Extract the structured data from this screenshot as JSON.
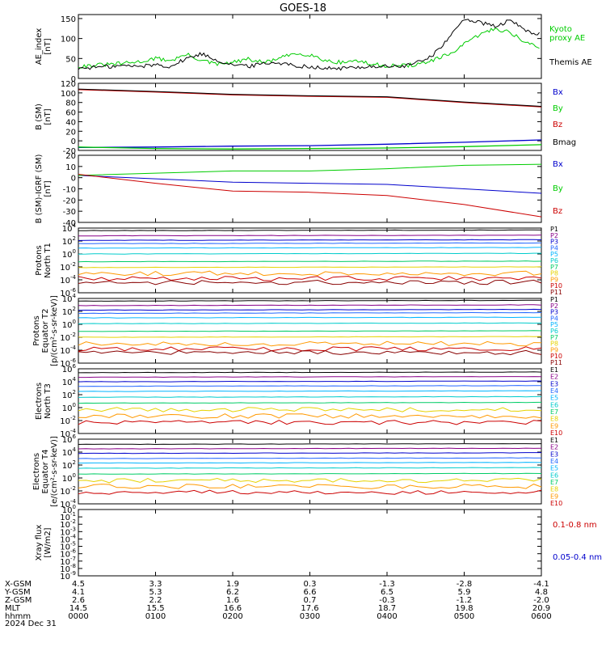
{
  "title": "GOES-18",
  "colors": {
    "black": "#000000",
    "green": "#00cc00",
    "blue": "#0000cc",
    "red": "#cc0000",
    "darkred": "#990000",
    "bright_green": "#00dd00",
    "proton_channels": [
      "#000000",
      "#880088",
      "#0000cc",
      "#2266ff",
      "#00b4ff",
      "#00cccc",
      "#00cc66",
      "#e6d200",
      "#ff9900",
      "#cc0000",
      "#880000"
    ],
    "electron_channels": [
      "#000000",
      "#880088",
      "#0000cc",
      "#2266ff",
      "#00b4ff",
      "#00cccc",
      "#00cc66",
      "#e6d200",
      "#ff9900",
      "#cc0000"
    ]
  },
  "panels": {
    "ae": {
      "ylabel": [
        "AE_index",
        "[nT]"
      ],
      "ticks": [
        "0",
        "50",
        "100",
        "150"
      ],
      "legend": [
        {
          "text": "Kyoto",
          "color": "#00cc00"
        },
        {
          "text": "proxy AE",
          "color": "#00cc00"
        },
        {
          "text": "Themis AE",
          "color": "#000000"
        }
      ]
    },
    "bsm": {
      "ylabel": [
        "B (SM)",
        "[nT]"
      ],
      "ticks": [
        "-20",
        "0",
        "20",
        "40",
        "60",
        "80",
        "100",
        "120"
      ],
      "legend": [
        {
          "text": "Bx",
          "color": "#0000cc"
        },
        {
          "text": "By",
          "color": "#00cc00"
        },
        {
          "text": "Bz",
          "color": "#cc0000"
        },
        {
          "text": "Bmag",
          "color": "#000000"
        }
      ]
    },
    "bigrf": {
      "ylabel": [
        "B (SM)-IGRF (SM)",
        "[nT]"
      ],
      "ticks": [
        "-40",
        "-30",
        "-20",
        "-10",
        "0",
        "10",
        "20"
      ],
      "legend": [
        {
          "text": "Bx",
          "color": "#0000cc"
        },
        {
          "text": "By",
          "color": "#00cc00"
        },
        {
          "text": "Bz",
          "color": "#cc0000"
        }
      ]
    },
    "p1": {
      "ylabel": [
        "Protons",
        "North T1"
      ],
      "ticks": [
        {
          "base": "10",
          "exp": "-6"
        },
        {
          "base": "10",
          "exp": "-4"
        },
        {
          "base": "10",
          "exp": "-2"
        },
        {
          "base": "10",
          "exp": "0"
        },
        {
          "base": "10",
          "exp": "2"
        },
        {
          "base": "10",
          "exp": "4"
        }
      ],
      "channels": [
        "P1",
        "P2",
        "P3",
        "P4",
        "P5",
        "P6",
        "P7",
        "P8",
        "P9",
        "P10",
        "P11"
      ]
    },
    "p2": {
      "ylabel": [
        "Protons",
        "Equator T2",
        "[p/(cm²-s-sr-keV)]"
      ],
      "ticks": [
        {
          "base": "10",
          "exp": "-6"
        },
        {
          "base": "10",
          "exp": "-4"
        },
        {
          "base": "10",
          "exp": "-2"
        },
        {
          "base": "10",
          "exp": "0"
        },
        {
          "base": "10",
          "exp": "2"
        },
        {
          "base": "10",
          "exp": "4"
        }
      ],
      "channels": [
        "P1",
        "P2",
        "P3",
        "P4",
        "P5",
        "P6",
        "P7",
        "P8",
        "P9",
        "P10",
        "P11"
      ]
    },
    "e1": {
      "ylabel": [
        "Electrons",
        "North T3"
      ],
      "ticks": [
        {
          "base": "10",
          "exp": "-4"
        },
        {
          "base": "10",
          "exp": "-2"
        },
        {
          "base": "10",
          "exp": "0"
        },
        {
          "base": "10",
          "exp": "2"
        },
        {
          "base": "10",
          "exp": "4"
        },
        {
          "base": "10",
          "exp": "6"
        }
      ],
      "channels": [
        "E1",
        "E2",
        "E3",
        "E4",
        "E5",
        "E6",
        "E7",
        "E8",
        "E9",
        "E10"
      ]
    },
    "e2": {
      "ylabel": [
        "Electrons",
        "Equator T4",
        "[e/(cm²-s-sr-keV)]"
      ],
      "ticks": [
        {
          "base": "10",
          "exp": "-4"
        },
        {
          "base": "10",
          "exp": "-2"
        },
        {
          "base": "10",
          "exp": "0"
        },
        {
          "base": "10",
          "exp": "2"
        },
        {
          "base": "10",
          "exp": "4"
        },
        {
          "base": "10",
          "exp": "6"
        }
      ],
      "channels": [
        "E1",
        "E2",
        "E3",
        "E4",
        "E5",
        "E6",
        "E7",
        "E8",
        "E9",
        "E10"
      ]
    },
    "xray": {
      "ylabel": [
        "Xray flux",
        "[W/m2]"
      ],
      "ticks": [
        {
          "base": "10",
          "exp": "-9"
        },
        {
          "base": "10",
          "exp": "-8"
        },
        {
          "base": "10",
          "exp": "-7"
        },
        {
          "base": "10",
          "exp": "-6"
        },
        {
          "base": "10",
          "exp": "-5"
        },
        {
          "base": "10",
          "exp": "-4"
        },
        {
          "base": "10",
          "exp": "-3"
        },
        {
          "base": "10",
          "exp": "-2"
        },
        {
          "base": "10",
          "exp": "-1"
        },
        {
          "base": "10",
          "exp": "0"
        }
      ],
      "legend": [
        {
          "text": "0.1-0.8 nm",
          "color": "#cc0000"
        },
        {
          "text": "0.05-0.4 nm",
          "color": "#0000cc"
        }
      ]
    }
  },
  "footer": {
    "row_labels": [
      "X-GSM",
      "Y-GSM",
      "Z-GSM",
      "MLT",
      "hhmm",
      "2024 Dec 31"
    ],
    "columns": [
      [
        "4.5",
        "4.1",
        "2.6",
        "14.5",
        "0000"
      ],
      [
        "3.3",
        "5.3",
        "2.2",
        "15.5",
        "0100"
      ],
      [
        "1.9",
        "6.2",
        "1.6",
        "16.6",
        "0200"
      ],
      [
        "0.3",
        "6.6",
        "0.7",
        "17.6",
        "0300"
      ],
      [
        "-1.3",
        "6.5",
        "-0.3",
        "18.7",
        "0400"
      ],
      [
        "-2.8",
        "5.9",
        "-1.2",
        "19.8",
        "0500"
      ],
      [
        "-4.1",
        "4.8",
        "-2.0",
        "20.9",
        "0600"
      ]
    ]
  },
  "chart_data": [
    {
      "type": "line",
      "name": "AE index",
      "ylim": [
        0,
        160
      ],
      "x_hours": [
        0,
        0.2,
        0.4,
        0.6,
        0.8,
        1.0,
        1.2,
        1.4,
        1.6,
        1.8,
        2.0,
        2.2,
        2.4,
        2.6,
        2.8,
        3.0,
        3.2,
        3.4,
        3.6,
        3.8,
        4.0,
        4.2,
        4.4,
        4.6,
        4.8,
        5.0,
        5.2,
        5.4,
        5.6,
        5.8,
        6.0
      ],
      "series": [
        {
          "name": "Kyoto proxy AE",
          "color": "#00cc00",
          "values": [
            30,
            33,
            35,
            38,
            42,
            50,
            45,
            60,
            45,
            35,
            40,
            48,
            40,
            50,
            62,
            60,
            45,
            40,
            45,
            35,
            32,
            32,
            35,
            45,
            60,
            85,
            110,
            125,
            115,
            90,
            75
          ]
        },
        {
          "name": "Themis AE",
          "color": "#000000",
          "values": [
            25,
            28,
            30,
            32,
            30,
            35,
            30,
            50,
            62,
            45,
            35,
            30,
            38,
            40,
            32,
            30,
            25,
            25,
            28,
            30,
            30,
            30,
            40,
            60,
            100,
            150,
            140,
            130,
            145,
            120,
            110
          ]
        }
      ]
    },
    {
      "type": "line",
      "name": "B (SM)",
      "ylim": [
        -20,
        120
      ],
      "x_hours": [
        0,
        1,
        2,
        3,
        4,
        5,
        6
      ],
      "series": [
        {
          "name": "Bx",
          "color": "#0000cc",
          "values": [
            -14,
            -13,
            -11,
            -10,
            -7,
            -3,
            2
          ]
        },
        {
          "name": "By",
          "color": "#00cc00",
          "values": [
            -13,
            -16,
            -17,
            -16,
            -15,
            -12,
            -8
          ]
        },
        {
          "name": "Bz",
          "color": "#cc0000",
          "values": [
            107,
            102,
            96,
            93,
            91,
            80,
            71
          ]
        },
        {
          "name": "Bmag",
          "color": "#000000",
          "values": [
            108,
            103,
            97,
            94,
            92,
            81,
            72
          ]
        }
      ]
    },
    {
      "type": "line",
      "name": "B (SM)-IGRF (SM)",
      "ylim": [
        -40,
        20
      ],
      "x_hours": [
        0,
        1,
        2,
        3,
        4,
        5,
        6
      ],
      "series": [
        {
          "name": "Bx",
          "color": "#0000cc",
          "values": [
            2,
            -1,
            -4,
            -5,
            -6,
            -10,
            -14
          ]
        },
        {
          "name": "By",
          "color": "#00cc00",
          "values": [
            2,
            4,
            6,
            6,
            8,
            11,
            12
          ]
        },
        {
          "name": "Bz",
          "color": "#cc0000",
          "values": [
            3,
            -5,
            -12,
            -13,
            -16,
            -24,
            -35
          ]
        }
      ]
    },
    {
      "type": "line",
      "name": "Protons North T1",
      "scale": "log",
      "ylim_exp": [
        -6,
        4
      ],
      "channels": [
        "P1",
        "P2",
        "P3",
        "P4",
        "P5",
        "P6",
        "P7",
        "P8",
        "P9",
        "P10",
        "P11"
      ],
      "log10_levels": [
        3.6,
        2.8,
        2.1,
        1.6,
        0.9,
        0.0,
        -1.2,
        -2.1,
        -3.0,
        -3.8,
        -4.4
      ]
    },
    {
      "type": "line",
      "name": "Protons Equator T2",
      "scale": "log",
      "ylim_exp": [
        -6,
        4
      ],
      "channels": [
        "P1",
        "P2",
        "P3",
        "P4",
        "P5",
        "P6",
        "P7",
        "P8",
        "P9",
        "P10",
        "P11"
      ],
      "log10_levels": [
        3.6,
        2.9,
        2.2,
        1.7,
        1.0,
        0.1,
        -1.1,
        -2.0,
        -3.0,
        -3.8,
        -4.4
      ]
    },
    {
      "type": "line",
      "name": "Electrons North T3",
      "scale": "log",
      "ylim_exp": [
        -4,
        6
      ],
      "channels": [
        "E1",
        "E2",
        "E3",
        "E4",
        "E5",
        "E6",
        "E7",
        "E8",
        "E9",
        "E10"
      ],
      "log10_levels": [
        5.4,
        4.7,
        4.0,
        3.3,
        2.5,
        1.6,
        0.7,
        -0.3,
        -1.3,
        -2.3
      ]
    },
    {
      "type": "line",
      "name": "Electrons Equator T4",
      "scale": "log",
      "ylim_exp": [
        -4,
        6
      ],
      "channels": [
        "E1",
        "E2",
        "E3",
        "E4",
        "E5",
        "E6",
        "E7",
        "E8",
        "E9",
        "E10"
      ],
      "log10_levels": [
        5.2,
        4.5,
        3.8,
        3.0,
        2.3,
        1.5,
        0.6,
        -0.4,
        -1.3,
        -2.2
      ]
    }
  ]
}
